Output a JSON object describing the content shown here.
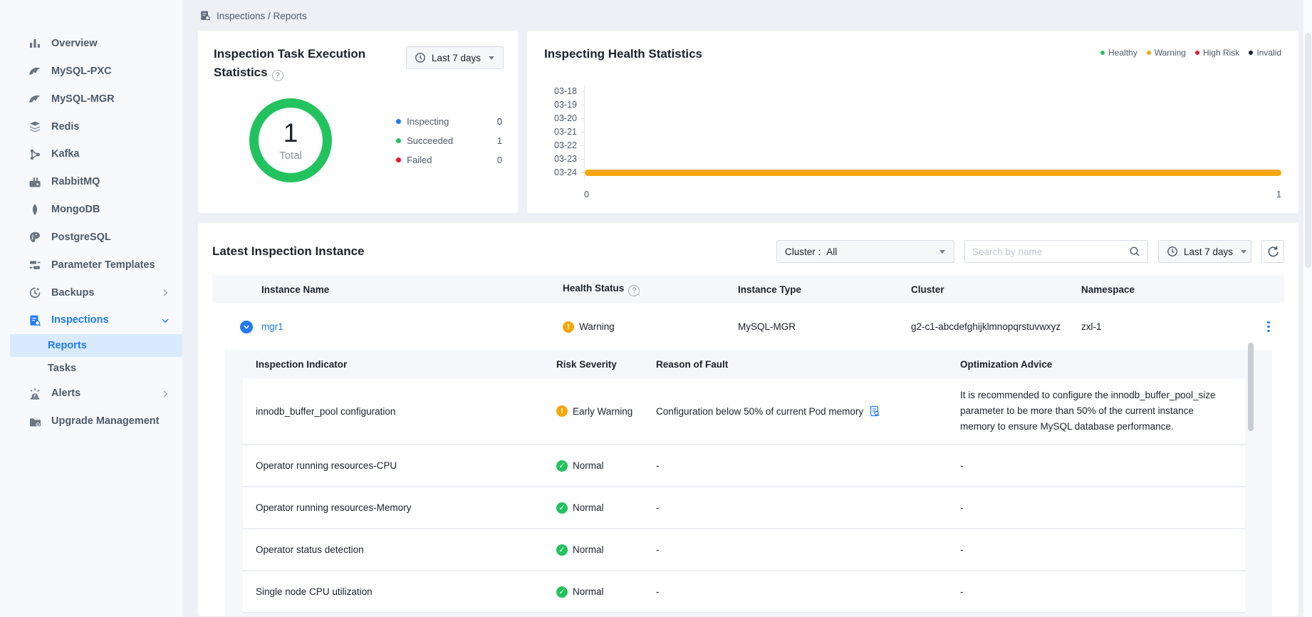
{
  "colors": {
    "accent": "#217af4",
    "green": "#22c35e",
    "orange": "#f7a70d",
    "red": "#e6162d",
    "invalid": "#1d2129",
    "text": "#1d2129",
    "secondary": "#4e5969",
    "muted": "#86909c"
  },
  "breadcrumb": {
    "label": "Inspections / Reports"
  },
  "sidebar": {
    "items": [
      {
        "label": "Overview"
      },
      {
        "label": "MySQL-PXC"
      },
      {
        "label": "MySQL-MGR"
      },
      {
        "label": "Redis"
      },
      {
        "label": "Kafka"
      },
      {
        "label": "RabbitMQ"
      },
      {
        "label": "MongoDB"
      },
      {
        "label": "PostgreSQL"
      },
      {
        "label": "Parameter Templates"
      },
      {
        "label": "Backups"
      },
      {
        "label": "Inspections"
      },
      {
        "label": "Alerts"
      },
      {
        "label": "Upgrade Management"
      }
    ],
    "sub": [
      {
        "label": "Reports"
      },
      {
        "label": "Tasks"
      }
    ]
  },
  "exec_card": {
    "title": "Inspection Task Execution Statistics",
    "range_label": "Last 7 days"
  },
  "health_card": {
    "title": "Inspecting Health Statistics"
  },
  "latest": {
    "title": "Latest Inspection Instance",
    "cluster_label": "Cluster :",
    "cluster_value": "All",
    "search_placeholder": "Search by name",
    "range_label": "Last 7 days",
    "columns": [
      "Instance Name",
      "Health Status",
      "Instance Type",
      "Cluster",
      "Namespace"
    ],
    "row": {
      "name": "mgr1",
      "health": "Warning",
      "type": "MySQL-MGR",
      "cluster": "g2-c1-abcdefghijklmnopqrstuvwxyz",
      "namespace": "zxl-1"
    },
    "detail_columns": [
      "Inspection Indicator",
      "Risk Severity",
      "Reason of Fault",
      "Optimization Advice"
    ],
    "detail_rows": [
      {
        "indicator": "innodb_buffer_pool configuration",
        "severity": "Early Warning",
        "reason": "Configuration below 50% of current Pod memory",
        "advice": "It is recommended to configure the innodb_buffer_pool_size parameter to be more than 50% of the current instance memory to ensure MySQL database performance."
      },
      {
        "indicator": "Operator running resources-CPU",
        "severity": "Normal",
        "reason": "-",
        "advice": "-"
      },
      {
        "indicator": "Operator running resources-Memory",
        "severity": "Normal",
        "reason": "-",
        "advice": "-"
      },
      {
        "indicator": "Operator status detection",
        "severity": "Normal",
        "reason": "-",
        "advice": "-"
      },
      {
        "indicator": "Single node CPU utilization",
        "severity": "Normal",
        "reason": "-",
        "advice": "-"
      }
    ]
  },
  "chart_data": [
    {
      "type": "pie",
      "title": "Inspection Task Execution Statistics",
      "total": 1,
      "center_label": "Total",
      "segments": [
        {
          "label": "Inspecting",
          "value": 0,
          "color": "#217af4"
        },
        {
          "label": "Succeeded",
          "value": 1,
          "color": "#22c35e"
        },
        {
          "label": "Failed",
          "value": 0,
          "color": "#e6162d"
        }
      ],
      "legend_position": "right"
    },
    {
      "type": "bar",
      "orientation": "horizontal",
      "title": "Inspecting Health Statistics",
      "categories": [
        "03-18",
        "03-19",
        "03-20",
        "03-21",
        "03-22",
        "03-23",
        "03-24"
      ],
      "series": [
        {
          "name": "Healthy",
          "color": "#22c35e",
          "values": [
            0,
            0,
            0,
            0,
            0,
            0,
            0
          ]
        },
        {
          "name": "Warning",
          "color": "#f7a70d",
          "values": [
            0,
            0,
            0,
            0,
            0,
            0,
            1
          ]
        },
        {
          "name": "High Risk",
          "color": "#e6162d",
          "values": [
            0,
            0,
            0,
            0,
            0,
            0,
            0
          ]
        },
        {
          "name": "Invalid",
          "color": "#1d2129",
          "values": [
            0,
            0,
            0,
            0,
            0,
            0,
            0
          ]
        }
      ],
      "xlim": [
        0,
        1
      ],
      "x_ticks": [
        "0",
        "1"
      ],
      "grid": false,
      "legend_position": "top-right"
    }
  ]
}
